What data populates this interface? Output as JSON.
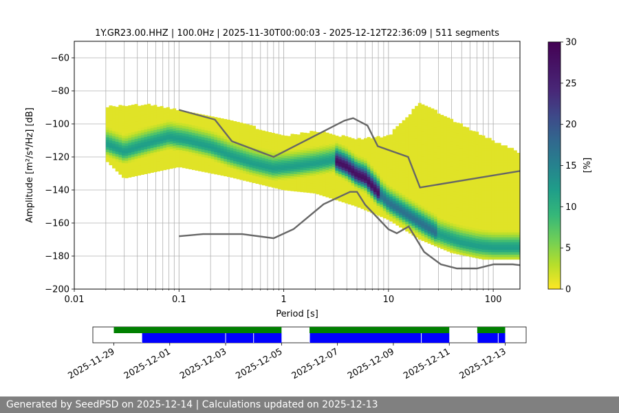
{
  "chart_data": {
    "type": "heatmap",
    "title": "1Y.GR23.00.HHZ | 100.0Hz | 2025-11-30T00:00:03 - 2025-12-12T22:36:09 | 511 segments",
    "xlabel": "Period [s]",
    "ylabel": "Amplitude [m²/s⁴/Hz] [dB]",
    "x_scale": "log",
    "xlim": [
      0.01,
      180
    ],
    "ylim": [
      -200,
      -50
    ],
    "x_ticks": [
      0.01,
      0.1,
      1,
      10,
      100
    ],
    "x_tick_labels": [
      "0.01",
      "0.1",
      "1",
      "10",
      "100"
    ],
    "y_ticks": [
      -200,
      -180,
      -160,
      -140,
      -120,
      -100,
      -80,
      -60
    ],
    "y_tick_labels": [
      "−200",
      "−180",
      "−160",
      "−140",
      "−120",
      "−100",
      "−80",
      "−60"
    ],
    "grid": true,
    "colorbar": {
      "label": "[%]",
      "range": [
        0,
        30
      ],
      "ticks": [
        0,
        5,
        10,
        15,
        20,
        25,
        30
      ],
      "tick_labels": [
        "0",
        "5",
        "10",
        "15",
        "20",
        "25",
        "30"
      ],
      "colormap": "viridis_r"
    },
    "mode_curve": {
      "name": "density mode",
      "x": [
        0.02,
        0.03,
        0.05,
        0.08,
        0.12,
        0.2,
        0.3,
        0.5,
        0.8,
        1.2,
        2.0,
        3.0,
        4.0,
        5.0,
        6.0,
        8.0,
        10,
        15,
        20,
        30,
        50,
        70,
        100,
        150,
        180
      ],
      "y": [
        -112,
        -117,
        -112,
        -108,
        -110,
        -114,
        -119,
        -124,
        -127,
        -126,
        -124,
        -122,
        -126,
        -131,
        -133,
        -142,
        -148,
        -155,
        -160,
        -167,
        -172,
        -174,
        -175,
        -175,
        -175
      ]
    },
    "band_upper": {
      "x": [
        0.02,
        0.05,
        0.1,
        0.3,
        1,
        2,
        5,
        10,
        20,
        40,
        80,
        180
      ],
      "y": [
        -90,
        -89,
        -92,
        -98,
        -108,
        -105,
        -110,
        -108,
        -88,
        -98,
        -108,
        -118
      ]
    },
    "band_lower": {
      "x": [
        0.02,
        0.03,
        0.05,
        0.1,
        0.3,
        1,
        2,
        5,
        10,
        20,
        40,
        80,
        180
      ],
      "y": [
        -122,
        -133,
        -130,
        -126,
        -132,
        -140,
        -142,
        -150,
        -158,
        -170,
        -178,
        -182,
        -182
      ]
    },
    "nhnm": {
      "name": "New High Noise Model",
      "x": [
        0.1,
        0.22,
        0.32,
        0.8,
        3.8,
        4.6,
        6.3,
        7.9,
        15.4,
        20,
        180
      ],
      "y": [
        -91.5,
        -97.4,
        -110.5,
        -120,
        -98,
        -96.5,
        -101,
        -113.5,
        -120,
        -138.5,
        -128.5
      ]
    },
    "nlnm": {
      "name": "New Low Noise Model",
      "x": [
        0.1,
        0.17,
        0.4,
        0.8,
        1.24,
        2.4,
        4.3,
        5.0,
        6.0,
        10.0,
        12.0,
        15.6,
        21.9,
        31.6,
        45,
        70,
        101,
        154,
        180
      ],
      "y": [
        -168,
        -166.7,
        -166.7,
        -169.2,
        -163.7,
        -148.6,
        -141.1,
        -141.1,
        -149,
        -163.8,
        -166.2,
        -162.1,
        -177.5,
        -185,
        -187.5,
        -187.5,
        -185,
        -185,
        -185.5
      ]
    },
    "availability": {
      "date_ticks": [
        "2025-11-29",
        "2025-12-01",
        "2025-12-03",
        "2025-12-05",
        "2025-12-07",
        "2025-12-09",
        "2025-12-11",
        "2025-12-13"
      ],
      "range_start": "2025-11-28T06:00",
      "range_end": "2025-12-13T18:00",
      "data_available": [
        {
          "start": "2025-11-29T00:00",
          "end": "2025-12-05T00:00"
        },
        {
          "start": "2025-12-06T00:00",
          "end": "2025-12-11T00:00"
        },
        {
          "start": "2025-12-12T00:00",
          "end": "2025-12-13T00:00"
        }
      ],
      "psd_computed": [
        {
          "start": "2025-11-30T00:00",
          "end": "2025-12-03T00:00"
        },
        {
          "start": "2025-12-03T00:00",
          "end": "2025-12-04T00:00"
        },
        {
          "start": "2025-12-04T00:00",
          "end": "2025-12-05T00:00"
        },
        {
          "start": "2025-12-06T00:00",
          "end": "2025-12-10T00:00"
        },
        {
          "start": "2025-12-10T00:00",
          "end": "2025-12-11T00:00"
        },
        {
          "start": "2025-12-12T00:00",
          "end": "2025-12-12T18:00"
        },
        {
          "start": "2025-12-12T18:00",
          "end": "2025-12-13T00:00"
        }
      ],
      "colors": {
        "data_available": "#008000",
        "psd_computed": "#0000ff"
      }
    }
  },
  "footer": {
    "text": "Generated by SeedPSD on 2025-12-14 | Calculations updated on 2025-12-13"
  }
}
